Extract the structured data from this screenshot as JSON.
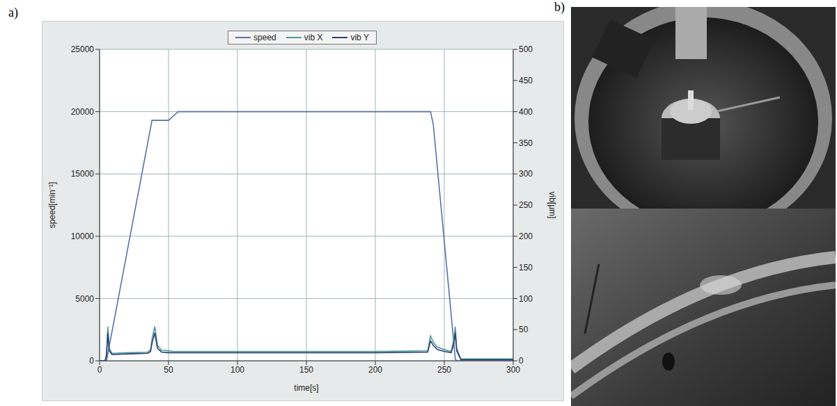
{
  "chart_data": {
    "type": "line",
    "panel_label": "a)",
    "x_label": "time[s]",
    "y_label": "speed[min⁻¹]",
    "y2_label": "vib[μm]",
    "x": [
      0,
      4,
      5,
      6,
      7,
      9,
      20,
      35,
      37,
      38,
      40,
      42,
      45,
      50,
      53,
      57,
      60,
      100,
      150,
      200,
      238,
      240,
      242,
      245,
      250,
      255,
      257,
      258,
      259,
      262,
      270,
      300
    ],
    "series": [
      {
        "name": "speed",
        "color": "#5b6fa6",
        "values": [
          0,
          0,
          0,
          585,
          1170,
          2340,
          8770,
          17540,
          18700,
          19300,
          19300,
          19300,
          19300,
          19300,
          19600,
          20000,
          20000,
          20000,
          20000,
          20000,
          20000,
          20000,
          19000,
          15500,
          9600,
          3700,
          1350,
          150,
          0,
          0,
          0,
          0
        ]
      },
      {
        "name": "vib X",
        "color": "#4f9a9a",
        "axis": "y2",
        "values": [
          0,
          0,
          10,
          55,
          20,
          12,
          13,
          14,
          18,
          35,
          55,
          25,
          17,
          16,
          15,
          15,
          15,
          15,
          15,
          15,
          16,
          40,
          30,
          22,
          18,
          15,
          35,
          55,
          20,
          3,
          3,
          3
        ]
      },
      {
        "name": "vib Y",
        "color": "#2b3f73",
        "axis": "y2",
        "values": [
          0,
          0,
          8,
          45,
          16,
          10,
          11,
          12,
          15,
          28,
          45,
          20,
          14,
          13,
          13,
          13,
          13,
          13,
          13,
          13,
          14,
          32,
          25,
          18,
          15,
          13,
          28,
          45,
          16,
          2,
          2,
          2
        ]
      }
    ],
    "xlim": [
      0,
      300
    ],
    "xticks": [
      0,
      50,
      100,
      150,
      200,
      250,
      300
    ],
    "ylim": [
      0,
      25000
    ],
    "yticks": [
      0,
      5000,
      10000,
      15000,
      20000,
      25000
    ],
    "y2lim": [
      0,
      500
    ],
    "y2ticks": [
      0,
      50,
      100,
      150,
      200,
      250,
      300,
      350,
      400,
      450,
      500
    ],
    "grid": true,
    "legend": "top"
  },
  "photo_panel": {
    "label": "b)"
  }
}
